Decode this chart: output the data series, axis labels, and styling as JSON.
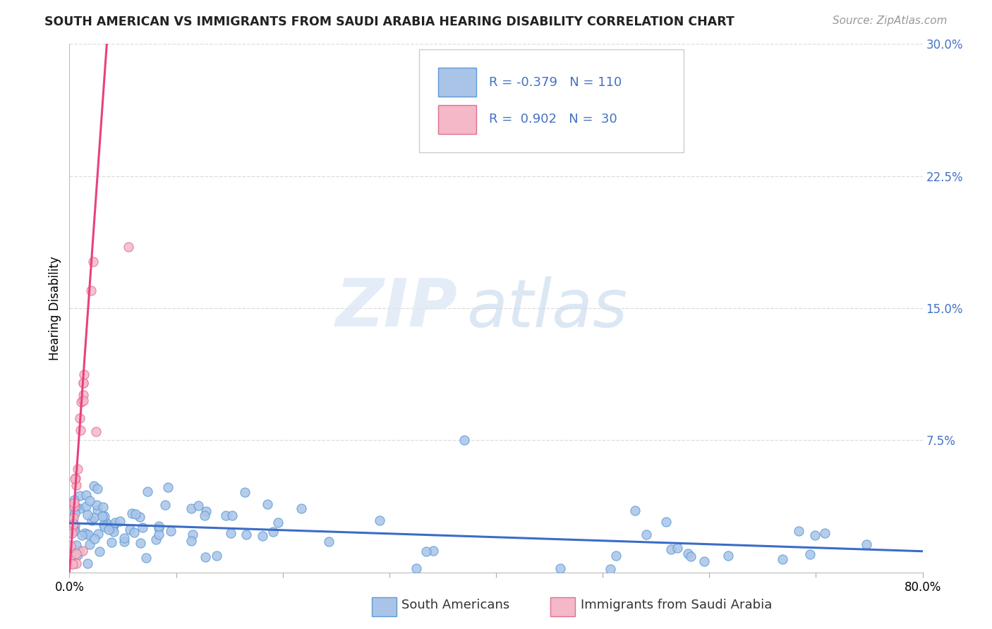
{
  "title": "SOUTH AMERICAN VS IMMIGRANTS FROM SAUDI ARABIA HEARING DISABILITY CORRELATION CHART",
  "source": "Source: ZipAtlas.com",
  "ylabel": "Hearing Disability",
  "xlim": [
    0.0,
    0.8
  ],
  "ylim": [
    0.0,
    0.3
  ],
  "xtick_positions": [
    0.0,
    0.1,
    0.2,
    0.3,
    0.4,
    0.5,
    0.6,
    0.7,
    0.8
  ],
  "xticklabels": [
    "0.0%",
    "",
    "",
    "",
    "",
    "",
    "",
    "",
    "80.0%"
  ],
  "yticks_right": [
    0.0,
    0.075,
    0.15,
    0.225,
    0.3
  ],
  "ytick_labels_right": [
    "",
    "7.5%",
    "15.0%",
    "22.5%",
    "30.0%"
  ],
  "blue_color": "#aac4e8",
  "blue_edge_color": "#5b9bd5",
  "pink_color": "#f4b8c8",
  "pink_edge_color": "#e07090",
  "blue_line_color": "#3b6cc7",
  "pink_line_color": "#e84080",
  "blue_line_x": [
    0.0,
    0.8
  ],
  "blue_line_y": [
    0.028,
    0.012
  ],
  "pink_line_x": [
    0.0,
    0.035
  ],
  "pink_line_y": [
    0.0,
    0.3
  ],
  "legend_label_blue": "South Americans",
  "legend_label_pink": "Immigrants from Saudi Arabia",
  "watermark_zip": "ZIP",
  "watermark_atlas": "atlas",
  "background_color": "#ffffff",
  "grid_color": "#dddddd",
  "right_axis_color": "#4472c4",
  "title_fontsize": 12.5,
  "source_fontsize": 11,
  "axis_fontsize": 12,
  "legend_fontsize": 13
}
